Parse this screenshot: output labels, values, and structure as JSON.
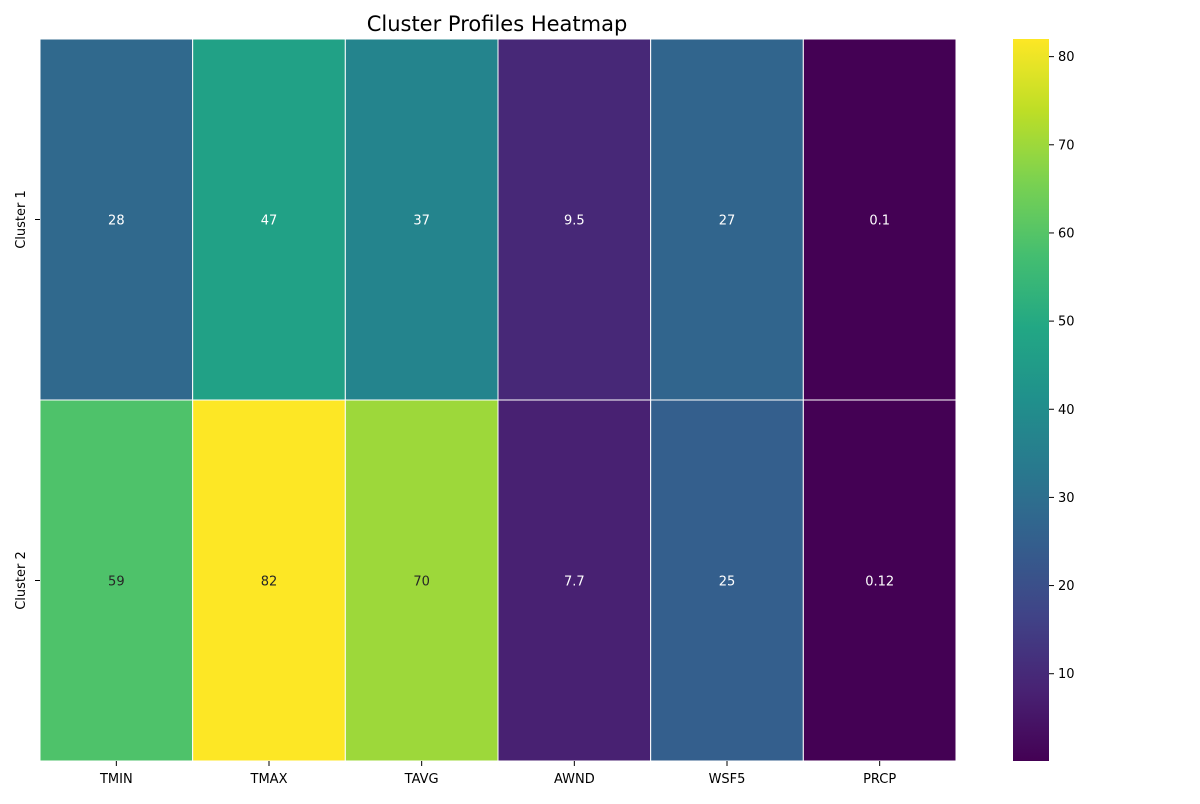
{
  "chart_data": {
    "type": "heatmap",
    "title": "Cluster Profiles Heatmap",
    "xlabel": "",
    "ylabel": "",
    "columns": [
      "TMIN",
      "TMAX",
      "TAVG",
      "AWND",
      "WSF5",
      "PRCP"
    ],
    "rows": [
      "Cluster 1",
      "Cluster 2"
    ],
    "values": [
      [
        28,
        47,
        37,
        9.5,
        27,
        0.1
      ],
      [
        59,
        82,
        70,
        7.7,
        25,
        0.12
      ]
    ],
    "annotations": [
      [
        "28",
        "47",
        "37",
        "9.5",
        "27",
        "0.1"
      ],
      [
        "59",
        "82",
        "70",
        "7.7",
        "25",
        "0.12"
      ]
    ],
    "colormap": "viridis",
    "color_range": [
      0.1,
      82
    ],
    "colorbar_ticks": [
      10,
      20,
      30,
      40,
      50,
      60,
      70,
      80
    ],
    "colorbar_tick_labels": [
      "10",
      "20",
      "30",
      "40",
      "50",
      "60",
      "70",
      "80"
    ],
    "cell_border_color": "#ffffff",
    "grid": false,
    "legend": "colorbar-right"
  }
}
